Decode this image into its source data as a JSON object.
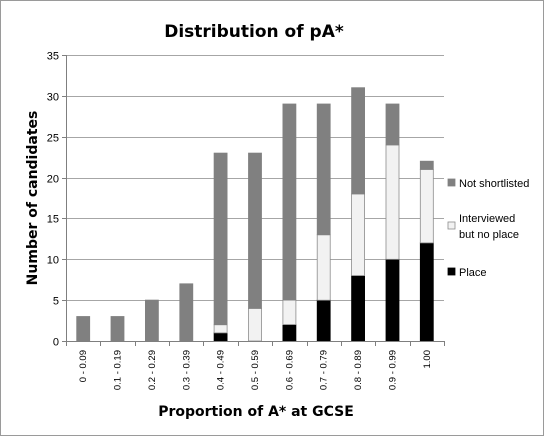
{
  "chart_data": {
    "type": "bar",
    "stacked": true,
    "title": "Distribution  of pA*",
    "xlabel": "Proportion of A* at GCSE",
    "ylabel": "Number of candidates",
    "ylim": [
      0,
      35
    ],
    "yticks": [
      0,
      5,
      10,
      15,
      20,
      25,
      30,
      35
    ],
    "grid": true,
    "legend_position": "right",
    "categories": [
      "0 - 0.09",
      "0.1 - 0.19",
      "0.2 - 0.29",
      "0.3 - 0.39",
      "0.4 - 0.49",
      "0.5 - 0.59",
      "0.6 - 0.69",
      "0.7 - 0.79",
      "0.8 - 0.89",
      "0.9 - 0.99",
      "1.00"
    ],
    "series": [
      {
        "name": "Place",
        "color": "#000000",
        "values": [
          0,
          0,
          0,
          0,
          1,
          0,
          2,
          5,
          8,
          10,
          12
        ]
      },
      {
        "name": "Interviewed but no place",
        "color": "#f2f2f2",
        "values": [
          0,
          0,
          0,
          0,
          1,
          4,
          3,
          8,
          10,
          14,
          9
        ]
      },
      {
        "name": "Not shortlisted",
        "color": "#808080",
        "values": [
          3,
          3,
          5,
          7,
          21,
          19,
          24,
          16,
          13,
          5,
          1
        ]
      }
    ],
    "legend_order": [
      "Not shortlisted",
      "Interviewed but no place",
      "Place"
    ],
    "legend_lines": {
      "Not shortlisted": [
        "Not shortlisted"
      ],
      "Interviewed but no place": [
        "Interviewed",
        "but no place"
      ],
      "Place": [
        "Place"
      ]
    }
  }
}
